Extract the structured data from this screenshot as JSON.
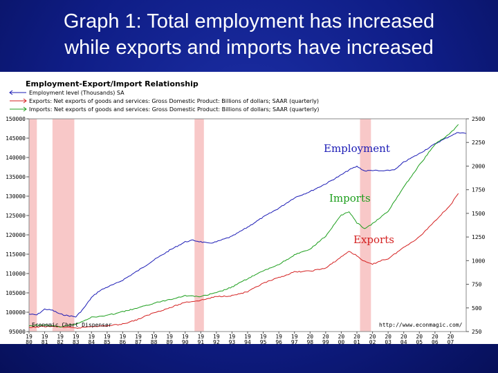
{
  "slide": {
    "title_line1": "Graph 1: Total employment has increased",
    "title_line2": "while exports and imports have increased"
  },
  "colors": {
    "employment": "#1a1ab5",
    "exports": "#d42020",
    "imports": "#1c9e1c",
    "recession": "#f8c8c8",
    "background": "#0f1d86"
  },
  "footer": {
    "left": "Economic Chart Dispenser",
    "right": "http://www.econmagic.com/"
  },
  "chart_data": {
    "type": "line",
    "title": "Employment-Export/Import Relationship",
    "legend": [
      "Employment level (Thousands) SA",
      "Exports: Net exports of goods and services: Gross Domestic Product: Billions of dollars; SAAR (quarterly)",
      "Imports: Net exports of goods and services: Gross Domestic Product: Billions of dollars; SAAR (quarterly)"
    ],
    "left_axis": {
      "range": [
        95000,
        150000
      ],
      "ticks": [
        "150000",
        "145000",
        "140000",
        "135000",
        "130000",
        "125000",
        "120000",
        "115000",
        "110000",
        "105000",
        "100000",
        "95000"
      ]
    },
    "right_axis": {
      "range": [
        250,
        2500
      ],
      "ticks": [
        "2500",
        "2250",
        "2000",
        "1750",
        "1500",
        "1250",
        "1000",
        "750",
        "500",
        "250"
      ]
    },
    "x_ticks_top": [
      "19",
      "19",
      "19",
      "19",
      "19",
      "19",
      "19",
      "19",
      "19",
      "19",
      "19",
      "19",
      "19",
      "19",
      "19",
      "19",
      "19",
      "19",
      "20",
      "20",
      "20",
      "20",
      "20",
      "20",
      "20",
      "20",
      "20",
      "20"
    ],
    "x_ticks_bottom": [
      "80",
      "81",
      "82",
      "83",
      "84",
      "85",
      "86",
      "87",
      "88",
      "89",
      "90",
      "91",
      "92",
      "93",
      "94",
      "95",
      "96",
      "97",
      "98",
      "99",
      "00",
      "01",
      "02",
      "03",
      "04",
      "05",
      "06",
      "07"
    ],
    "x_range": [
      1980,
      2008
    ],
    "recessions": [
      [
        1980.0,
        1980.5
      ],
      [
        1981.5,
        1982.9
      ],
      [
        1990.6,
        1991.2
      ],
      [
        2001.2,
        2001.9
      ]
    ],
    "annotations": {
      "employment": "Employment",
      "imports": "Imports",
      "exports": "Exports"
    },
    "series": [
      {
        "name": "Employment",
        "axis": "left",
        "x": [
          1980,
          1980.5,
          1981,
          1981.5,
          1982,
          1982.5,
          1983,
          1983.5,
          1984,
          1984.5,
          1985,
          1985.5,
          1986,
          1987,
          1988,
          1989,
          1990,
          1990.5,
          1991,
          1991.5,
          1992,
          1993,
          1994,
          1995,
          1996,
          1997,
          1998,
          1999,
          2000,
          2000.5,
          2001,
          2001.5,
          2002,
          2002.5,
          2003,
          2003.5,
          2004,
          2005,
          2006,
          2007,
          2007.5,
          2008
        ],
        "values": [
          99500,
          99300,
          100800,
          100500,
          99500,
          99100,
          98800,
          101000,
          103800,
          105500,
          106500,
          107300,
          108300,
          110800,
          113500,
          116000,
          118200,
          118600,
          118200,
          117800,
          118200,
          119600,
          122000,
          124600,
          126900,
          129600,
          131200,
          133200,
          135500,
          136800,
          137700,
          136500,
          136700,
          136500,
          136600,
          137000,
          138800,
          141000,
          143500,
          145600,
          146500,
          146200
        ]
      },
      {
        "name": "Exports",
        "axis": "right",
        "x": [
          1980,
          1981,
          1982,
          1983,
          1984,
          1985,
          1986,
          1987,
          1988,
          1989,
          1990,
          1991,
          1992,
          1993,
          1994,
          1995,
          1996,
          1997,
          1998,
          1999,
          2000,
          2000.5,
          2001,
          2001.5,
          2002,
          2002.5,
          2003,
          2004,
          2005,
          2006,
          2007,
          2007.5
        ],
        "values": [
          290,
          305,
          300,
          285,
          305,
          310,
          330,
          380,
          450,
          500,
          560,
          580,
          620,
          630,
          670,
          760,
          820,
          880,
          890,
          920,
          1040,
          1100,
          1050,
          990,
          960,
          1000,
          1020,
          1140,
          1250,
          1420,
          1590,
          1710
        ]
      },
      {
        "name": "Imports",
        "axis": "right",
        "x": [
          1980,
          1981,
          1982,
          1983,
          1984,
          1985,
          1986,
          1987,
          1988,
          1989,
          1990,
          1991,
          1992,
          1993,
          1994,
          1995,
          1996,
          1997,
          1998,
          1999,
          2000,
          2000.5,
          2001,
          2001.5,
          2002,
          2003,
          2004,
          2005,
          2006,
          2007,
          2007.5
        ],
        "values": [
          310,
          320,
          300,
          330,
          400,
          420,
          460,
          500,
          550,
          590,
          630,
          620,
          660,
          720,
          810,
          890,
          960,
          1060,
          1120,
          1260,
          1480,
          1520,
          1400,
          1340,
          1390,
          1520,
          1780,
          2010,
          2230,
          2350,
          2440
        ]
      }
    ]
  }
}
